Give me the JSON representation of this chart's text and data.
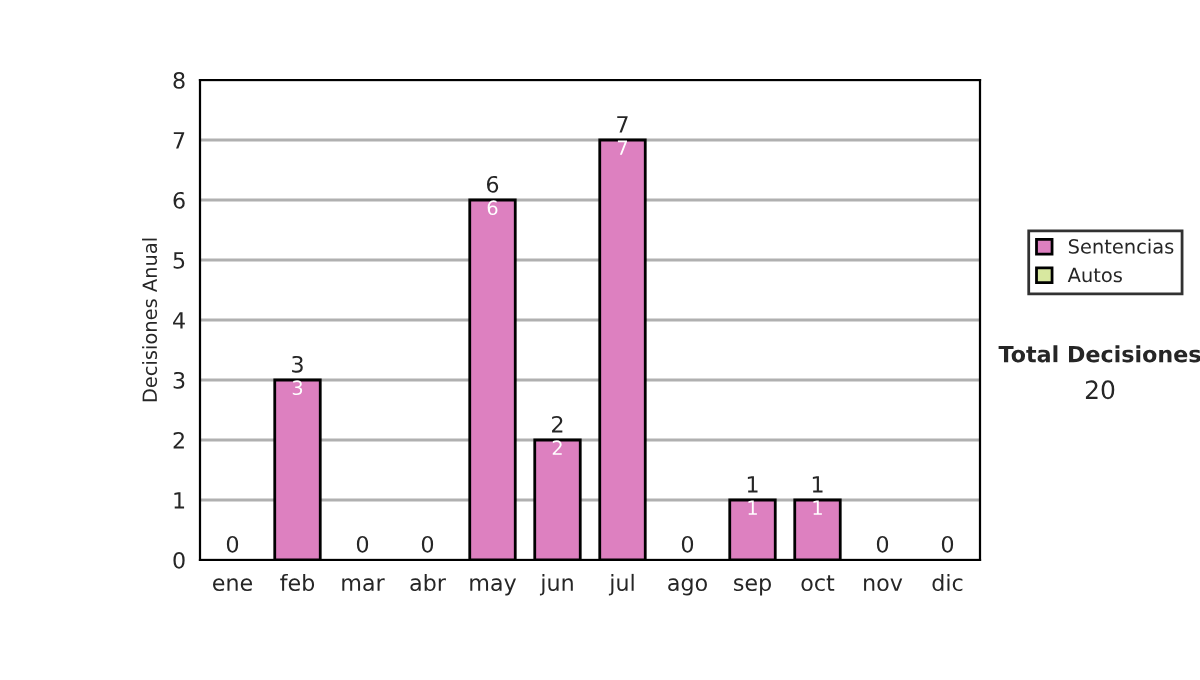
{
  "chart_data": {
    "type": "bar",
    "stacked": true,
    "ylabel": "Decisiones Anual",
    "categories": [
      "ene",
      "feb",
      "mar",
      "abr",
      "may",
      "jun",
      "jul",
      "ago",
      "sep",
      "oct",
      "nov",
      "dic"
    ],
    "series": [
      {
        "name": "Sentencias",
        "color": "#dd80c0",
        "values": [
          0,
          3,
          0,
          0,
          6,
          2,
          7,
          0,
          1,
          1,
          0,
          0
        ],
        "value_labels": [
          null,
          "3",
          null,
          null,
          "6",
          "2",
          "7",
          null,
          "1",
          "1",
          null,
          null
        ]
      },
      {
        "name": "Autos",
        "color": "#d8e8a0",
        "values": [
          0,
          0,
          0,
          0,
          0,
          0,
          0,
          0,
          0,
          0,
          0,
          0
        ]
      }
    ],
    "totals": [
      "0",
      "3",
      "0",
      "0",
      "6",
      "2",
      "7",
      "0",
      "1",
      "1",
      "0",
      "0"
    ],
    "ylim": [
      0,
      8
    ],
    "yticks": [
      0,
      1,
      2,
      3,
      4,
      5,
      6,
      7,
      8
    ],
    "grid": "y",
    "legend": "right",
    "annotations": [
      "Total Decisiones",
      "20"
    ]
  }
}
